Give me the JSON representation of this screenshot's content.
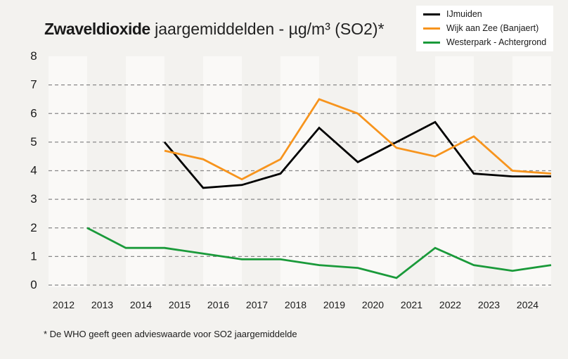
{
  "chart_data": {
    "type": "line",
    "title_bold": "Zwaveldioxide",
    "title_rest": " jaargemiddelden - µg/m³ (SO2)*",
    "xlabel": "",
    "ylabel": "",
    "ylim": [
      0,
      8
    ],
    "yticks": [
      "0",
      "1",
      "2",
      "3",
      "4",
      "5",
      "6",
      "7",
      "8"
    ],
    "categories": [
      "2012",
      "2013",
      "2014",
      "2015",
      "2016",
      "2017",
      "2018",
      "2019",
      "2020",
      "2021",
      "2022",
      "2023",
      "2024"
    ],
    "grid": true,
    "legend_position": "top-right",
    "series": [
      {
        "name": "IJmuiden",
        "color": "#000000",
        "values": [
          null,
          null,
          5.0,
          3.4,
          3.5,
          3.9,
          5.5,
          4.3,
          5.0,
          5.7,
          3.9,
          3.8,
          3.8
        ]
      },
      {
        "name": "Wijk aan Zee (Banjaert)",
        "color": "#f7941d",
        "values": [
          null,
          null,
          4.7,
          4.4,
          3.7,
          4.4,
          6.5,
          6.0,
          4.8,
          4.5,
          5.2,
          4.0,
          3.9
        ]
      },
      {
        "name": "Westerpark - Achtergrond",
        "color": "#1a9a3a",
        "values": [
          2.0,
          1.3,
          1.3,
          1.1,
          0.9,
          0.9,
          0.7,
          0.6,
          0.25,
          1.3,
          0.7,
          0.5,
          0.7
        ]
      }
    ],
    "footnote": "* De WHO geeft geen advieswaarde voor SO2 jaargemiddelde"
  }
}
